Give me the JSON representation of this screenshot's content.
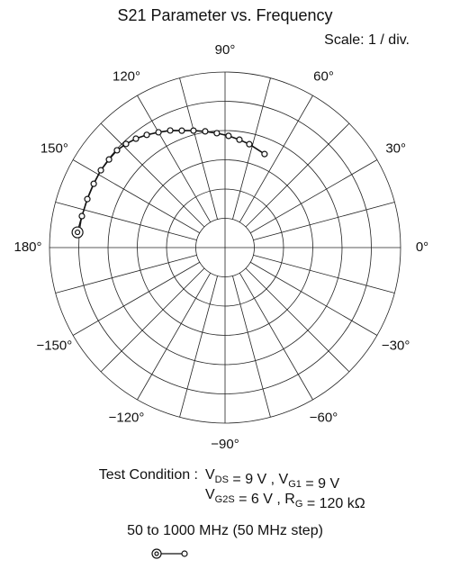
{
  "chart_data": {
    "type": "polar",
    "title": "S21 Parameter vs. Frequency",
    "scale_label": "Scale: 1 / div.",
    "rlim": [
      0,
      6
    ],
    "rticks": [
      1,
      2,
      3,
      4,
      5,
      6
    ],
    "thetaticks": [
      {
        "value": 90,
        "label": "90°"
      },
      {
        "value": 60,
        "label": "60°"
      },
      {
        "value": 30,
        "label": "30°"
      },
      {
        "value": 0,
        "label": "0°"
      },
      {
        "value": -30,
        "label": "−30°"
      },
      {
        "value": -60,
        "label": "−60°"
      },
      {
        "value": -90,
        "label": "−90°"
      },
      {
        "value": -120,
        "label": "−120°"
      },
      {
        "value": -150,
        "label": "−150°"
      },
      {
        "value": 180,
        "label": "180°"
      },
      {
        "value": 150,
        "label": "150°"
      },
      {
        "value": 120,
        "label": "120°"
      }
    ],
    "series": [
      {
        "color": "#111111",
        "r": [
          5.07,
          5.01,
          4.99,
          4.99,
          5.0,
          4.98,
          4.97,
          4.9,
          4.81,
          4.69,
          4.55,
          4.42,
          4.26,
          4.14,
          4.03,
          3.92,
          3.82,
          3.72,
          3.63,
          3.47
        ],
        "theta": [
          174.1,
          167.6,
          160.6,
          154.1,
          148.1,
          142.8,
          138,
          133.7,
          129.3,
          124.8,
          120,
          115.1,
          110.3,
          105.1,
          99.7,
          94.1,
          88.2,
          82.4,
          76.8,
          67.1
        ]
      }
    ],
    "test_condition": {
      "label": "Test Condition :",
      "lines": [
        [
          {
            "t": "V"
          },
          {
            "sub": "DS"
          },
          {
            "t": " = 9 V , V"
          },
          {
            "sub": "G1"
          },
          {
            "t": " = 9 V"
          }
        ],
        [
          {
            "t": "V"
          },
          {
            "sub": "G2S"
          },
          {
            "t": " = 6 V , R"
          },
          {
            "sub": "G"
          },
          {
            "t": " = 120 kΩ"
          }
        ]
      ]
    },
    "sweep": "50 to 1000 MHz (50 MHz step)"
  }
}
